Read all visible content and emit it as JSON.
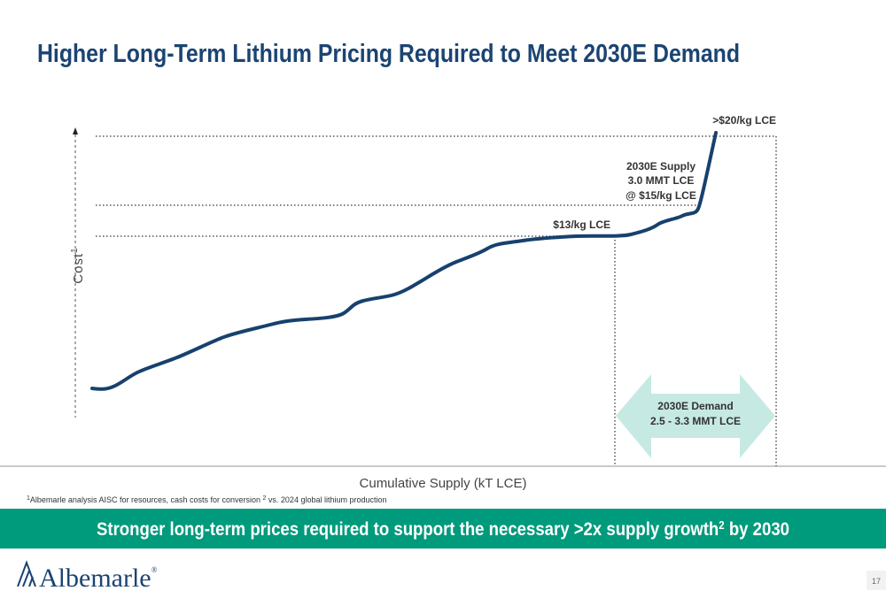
{
  "header": {
    "title": "Higher Long-Term Lithium Pricing Required to Meet 2030E Demand"
  },
  "chart": {
    "annotations": {
      "top_price": ">$20/kg LCE",
      "supply": [
        "2030E Supply",
        "3.0 MMT LCE",
        "@ $15/kg LCE"
      ],
      "mid_price": "$13/kg LCE",
      "demand": [
        "2030E Demand",
        "2.5 - 3.3 MMT LCE"
      ]
    },
    "y_label": {
      "text": "Cost",
      "sup": "1"
    },
    "x_label": "Cumulative Supply (kT LCE)"
  },
  "footnote": {
    "parts": [
      "1",
      "Albemarle analysis AISC for resources, cash costs for conversion ",
      "2",
      " vs. 2024 global lithium production"
    ]
  },
  "banner": {
    "text": "Stronger long-term prices required to support the necessary >2x supply growth",
    "sup": "2",
    "tail": " by 2030"
  },
  "footer": {
    "logo": "Albemarle",
    "logo_mark": "®",
    "page": "17"
  }
}
